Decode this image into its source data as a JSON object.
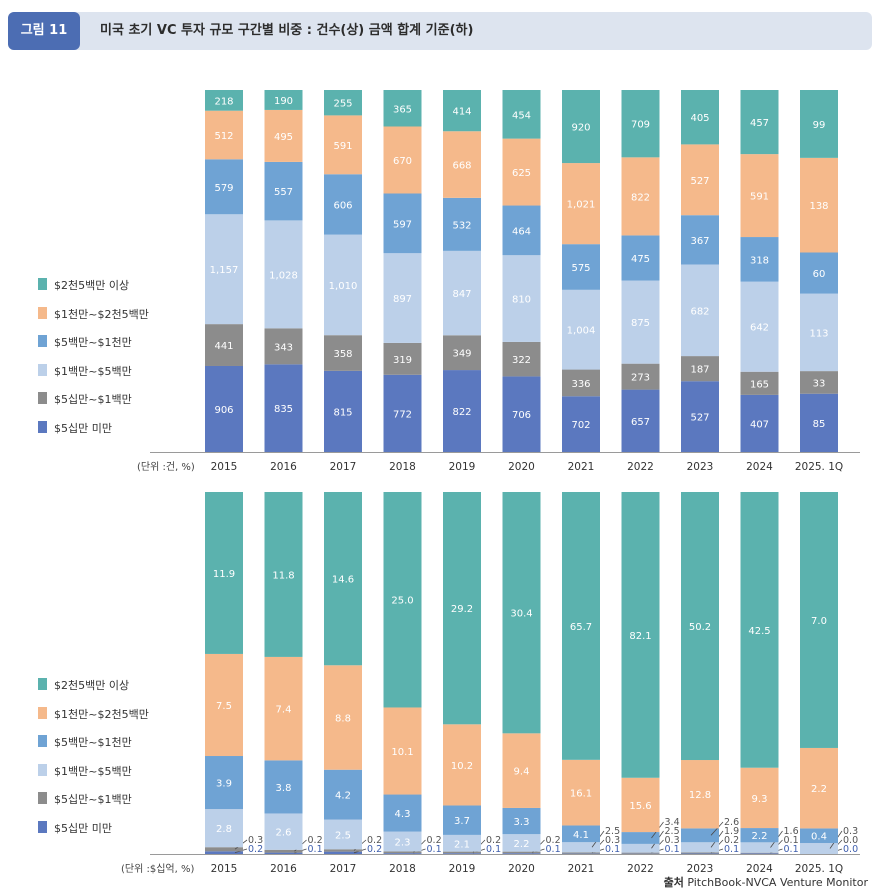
{
  "header": {
    "figure_label": "그림 11",
    "title": "미국 초기 VC 투자 규모 구간별 비중 : 건수(상) 금액 합계 기준(하)"
  },
  "colors": {
    "segments": [
      "#5b78bf",
      "#8c8c8c",
      "#bcd0e9",
      "#6fa3d4",
      "#f5b98b",
      "#5bb2ae"
    ],
    "header_bg": "#dde4ef",
    "tag_bg": "#4c6db3"
  },
  "legend": [
    "$2천5백만 이상",
    "$1천만~$2천5백만",
    "$5백만~$1천만",
    "$1백만~$5백만",
    "$5십만~$1백만",
    "$5십만 미만"
  ],
  "source": {
    "prefix": "출처",
    "text": "PitchBook-NVCA Venture Monitor"
  },
  "chart_data": [
    {
      "type": "bar",
      "stacked": true,
      "normalized": true,
      "unit_label": "(단위 :건, %)",
      "categories": [
        "2015",
        "2016",
        "2017",
        "2018",
        "2019",
        "2020",
        "2021",
        "2022",
        "2023",
        "2024",
        "2025. 1Q"
      ],
      "series": [
        {
          "name": "$5십만 미만",
          "values": [
            906,
            835,
            815,
            772,
            822,
            706,
            702,
            657,
            527,
            407,
            85
          ],
          "labels": [
            "906",
            "835",
            "815",
            "772",
            "822",
            "706",
            "702",
            "657",
            "527",
            "407",
            "85"
          ]
        },
        {
          "name": "$5십만~$1백만",
          "values": [
            441,
            343,
            358,
            319,
            349,
            322,
            336,
            273,
            187,
            165,
            33
          ],
          "labels": [
            "441",
            "343",
            "358",
            "319",
            "349",
            "322",
            "336",
            "273",
            "187",
            "165",
            "33"
          ]
        },
        {
          "name": "$1백만~$5백만",
          "values": [
            1157,
            1028,
            1010,
            897,
            847,
            810,
            1004,
            875,
            682,
            642,
            113
          ],
          "labels": [
            "1,157",
            "1,028",
            "1,010",
            "897",
            "847",
            "810",
            "1,004",
            "875",
            "682",
            "642",
            "113"
          ]
        },
        {
          "name": "$5백만~$1천만",
          "values": [
            579,
            557,
            606,
            597,
            532,
            464,
            575,
            475,
            367,
            318,
            60
          ],
          "labels": [
            "579",
            "557",
            "606",
            "597",
            "532",
            "464",
            "575",
            "475",
            "367",
            "318",
            "60"
          ]
        },
        {
          "name": "$1천만~$2천5백만",
          "values": [
            512,
            495,
            591,
            670,
            668,
            625,
            1021,
            822,
            527,
            591,
            138
          ],
          "labels": [
            "512",
            "495",
            "591",
            "670",
            "668",
            "625",
            "1,021",
            "822",
            "527",
            "591",
            "138"
          ]
        },
        {
          "name": "$2천5백만 이상",
          "values": [
            218,
            190,
            255,
            365,
            414,
            454,
            920,
            709,
            405,
            457,
            99
          ],
          "labels": [
            "218",
            "190",
            "255",
            "365",
            "414",
            "454",
            "920",
            "709",
            "405",
            "457",
            "99"
          ]
        }
      ]
    },
    {
      "type": "bar",
      "stacked": true,
      "normalized": true,
      "unit_label": "(단위 :$십억, %)",
      "categories": [
        "2015",
        "2016",
        "2017",
        "2018",
        "2019",
        "2020",
        "2021",
        "2022",
        "2023",
        "2024",
        "2025. 1Q"
      ],
      "series": [
        {
          "name": "$5십만 미만",
          "values": [
            0.2,
            0.1,
            0.2,
            0.1,
            0.1,
            0.1,
            0.1,
            0.1,
            0.1,
            0.1,
            0.0
          ],
          "labels": [
            "0.2",
            "0.1",
            "0.2",
            "0.1",
            "0.1",
            "0.1",
            "0.1",
            "0.1",
            "0.1",
            "0.1",
            "0.0"
          ]
        },
        {
          "name": "$5십만~$1백만",
          "values": [
            0.3,
            0.2,
            0.2,
            0.2,
            0.2,
            0.2,
            0.3,
            0.3,
            0.2,
            0.1,
            0.0
          ],
          "labels": [
            "0.3",
            "0.2",
            "0.2",
            "0.2",
            "0.2",
            "0.2",
            "0.3",
            "0.3",
            "0.2",
            "0.1",
            "0.0"
          ]
        },
        {
          "name": "$1백만~$5백만",
          "values": [
            2.8,
            2.6,
            2.5,
            2.3,
            2.1,
            2.2,
            2.5,
            2.5,
            1.9,
            1.6,
            0.3
          ],
          "labels": [
            "2.8",
            "2.6",
            "2.5",
            "2.3",
            "2.1",
            "2.2",
            "2.5",
            "2.5",
            "1.9",
            "1.6",
            "0.3"
          ]
        },
        {
          "name": "$5백만~$1천만",
          "values": [
            3.9,
            3.8,
            4.2,
            4.3,
            3.7,
            3.3,
            4.1,
            3.4,
            2.6,
            2.2,
            0.4
          ],
          "labels": [
            "3.9",
            "3.8",
            "4.2",
            "4.3",
            "3.7",
            "3.3",
            "4.1",
            "3.4",
            "2.6",
            "2.2",
            "0.4"
          ]
        },
        {
          "name": "$1천만~$2천5백만",
          "values": [
            7.5,
            7.4,
            8.8,
            10.1,
            10.2,
            9.4,
            16.1,
            15.6,
            12.8,
            9.3,
            2.2
          ],
          "labels": [
            "7.5",
            "7.4",
            "8.8",
            "10.1",
            "10.2",
            "9.4",
            "16.1",
            "15.6",
            "12.8",
            "9.3",
            "2.2"
          ]
        },
        {
          "name": "$2천5백만 이상",
          "values": [
            11.9,
            11.8,
            14.6,
            25.0,
            29.2,
            30.4,
            65.7,
            82.1,
            50.2,
            42.5,
            7.0
          ],
          "labels": [
            "11.9",
            "11.8",
            "14.6",
            "25.0",
            "29.2",
            "30.4",
            "65.7",
            "82.1",
            "50.2",
            "42.5",
            "7.0"
          ]
        }
      ]
    }
  ]
}
